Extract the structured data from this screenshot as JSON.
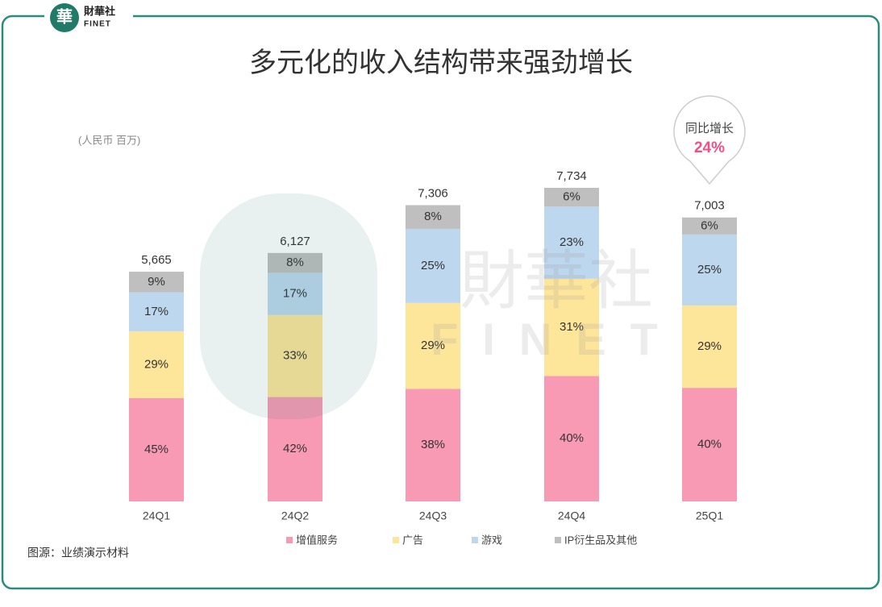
{
  "logo": {
    "name": "財華社",
    "sub": "FINET"
  },
  "watermark": {
    "name": "財華社",
    "sub": "FINET"
  },
  "source": "图源：业绩演示材料",
  "chart_data": {
    "type": "bar",
    "stacked": true,
    "title": "多元化的收入结构带来强劲增长",
    "unit_label": "(人民币 百万)",
    "categories": [
      "24Q1",
      "24Q2",
      "24Q3",
      "24Q4",
      "25Q1"
    ],
    "series": [
      {
        "name": "增值服务",
        "color": "#f99ab5",
        "values": [
          45,
          42,
          38,
          40,
          40
        ],
        "value_labels": [
          "45%",
          "42%",
          "38%",
          "40%",
          "40%"
        ]
      },
      {
        "name": "广告",
        "color": "#fde59a",
        "values": [
          29,
          33,
          29,
          31,
          29
        ],
        "value_labels": [
          "29%",
          "33%",
          "29%",
          "31%",
          "29%"
        ]
      },
      {
        "name": "游戏",
        "color": "#bdd7ee",
        "values": [
          17,
          17,
          25,
          23,
          25
        ],
        "value_labels": [
          "17%",
          "17%",
          "25%",
          "23%",
          "25%"
        ]
      },
      {
        "name": "IP衍生品及其他",
        "color": "#bfbfbf",
        "values": [
          9,
          8,
          8,
          6,
          6
        ],
        "value_labels": [
          "9%",
          "8%",
          "8%",
          "6%",
          "6%"
        ]
      }
    ],
    "totals": {
      "values": [
        5665,
        6127,
        7306,
        7734,
        7003
      ],
      "value_labels": [
        "5,665",
        "6,127",
        "7,306",
        "7,734",
        "7,003"
      ]
    },
    "annotation": {
      "text": "同比增长",
      "value": 24,
      "label": "24%"
    }
  }
}
